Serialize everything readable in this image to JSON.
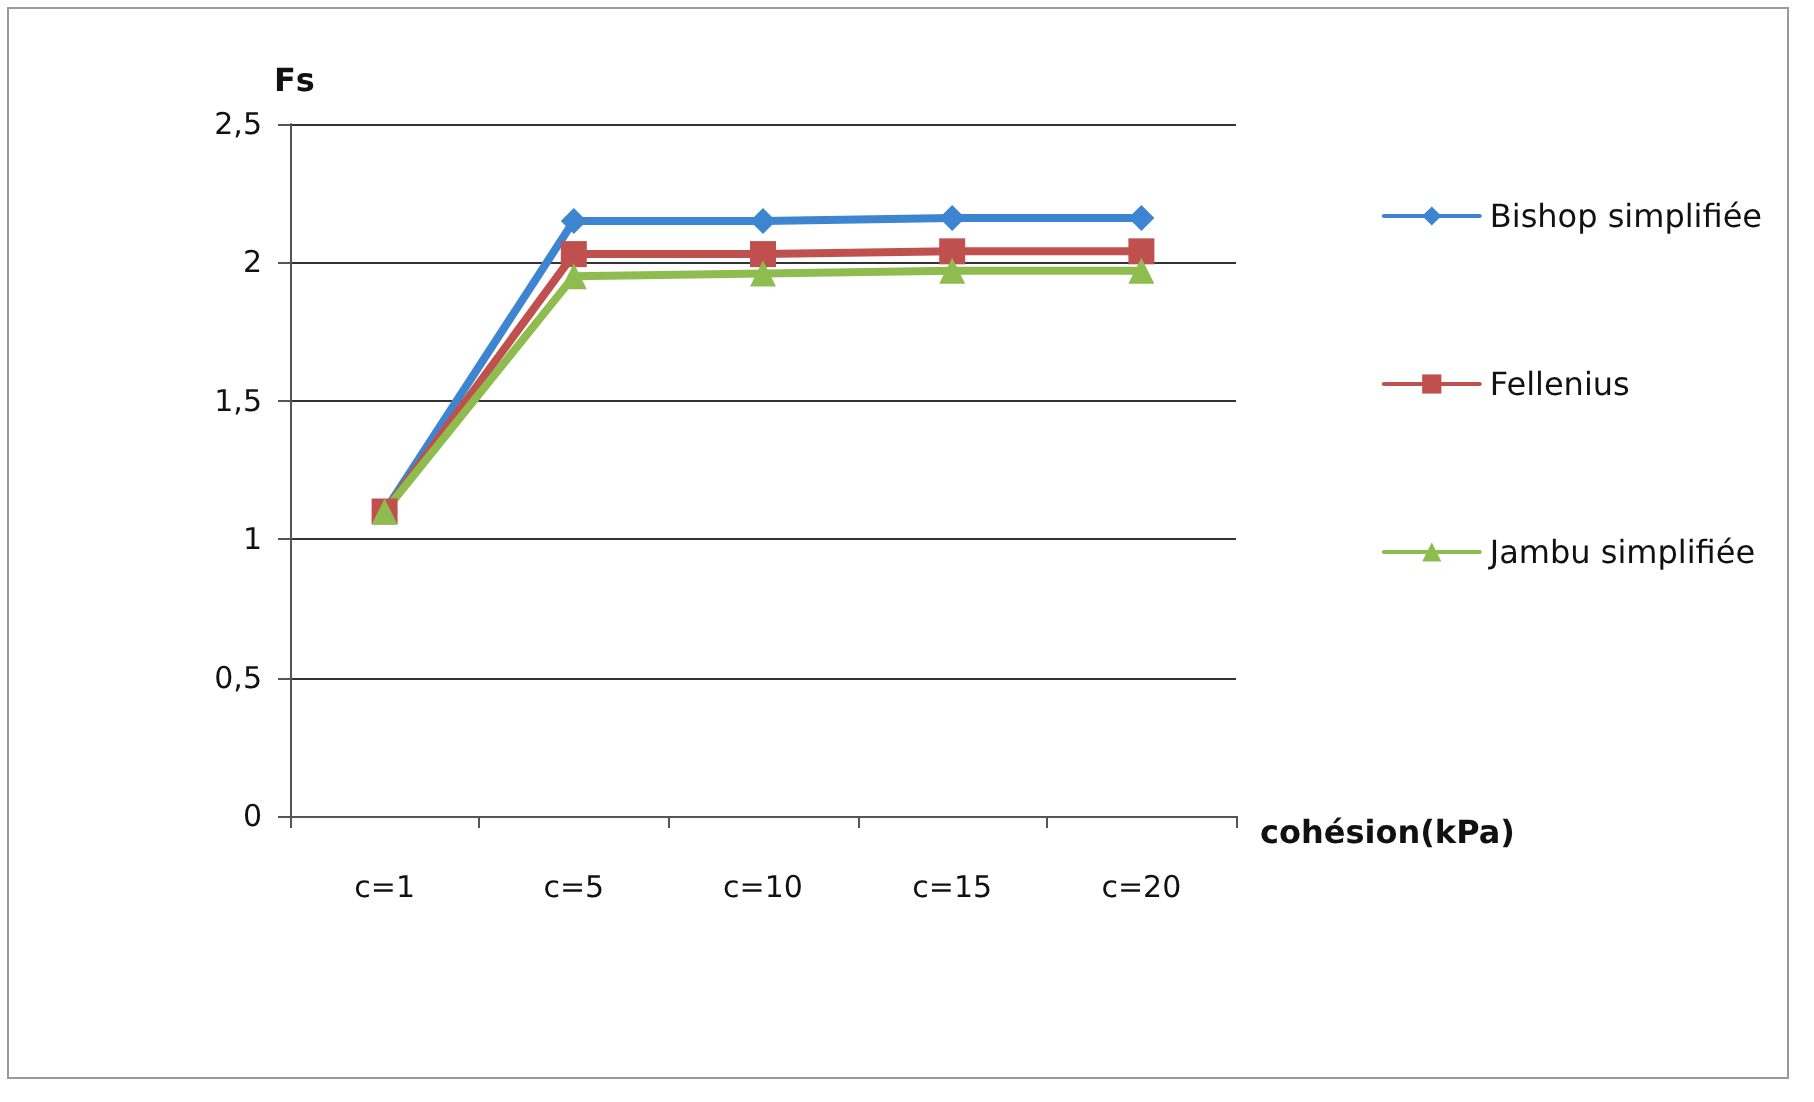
{
  "chart_data": {
    "type": "line",
    "xlabel": "cohésion(kPa)",
    "ylabel": "Fs",
    "categories": [
      "c=1",
      "c=5",
      "c=10",
      "c=15",
      "c=20"
    ],
    "series": [
      {
        "name": "Bishop simplifiée",
        "color": "#3d85d1",
        "marker": "diamond",
        "values": [
          1.1,
          2.15,
          2.15,
          2.16,
          2.16
        ]
      },
      {
        "name": "Fellenius",
        "color": "#c0504d",
        "marker": "square",
        "values": [
          1.1,
          2.03,
          2.03,
          2.04,
          2.04
        ]
      },
      {
        "name": "Jambu simplifiée",
        "color": "#8fbc4f",
        "marker": "triangle",
        "values": [
          1.1,
          1.95,
          1.96,
          1.97,
          1.97
        ]
      }
    ],
    "ylim": [
      0,
      2.5
    ],
    "yticks": [
      0,
      {
        "value": 0.5,
        "label": "0,5"
      },
      1,
      {
        "value": 1.5,
        "label": "1,5"
      },
      2,
      {
        "value": 2.5,
        "label": "2,5"
      }
    ],
    "grid": "y",
    "legend": "right"
  }
}
